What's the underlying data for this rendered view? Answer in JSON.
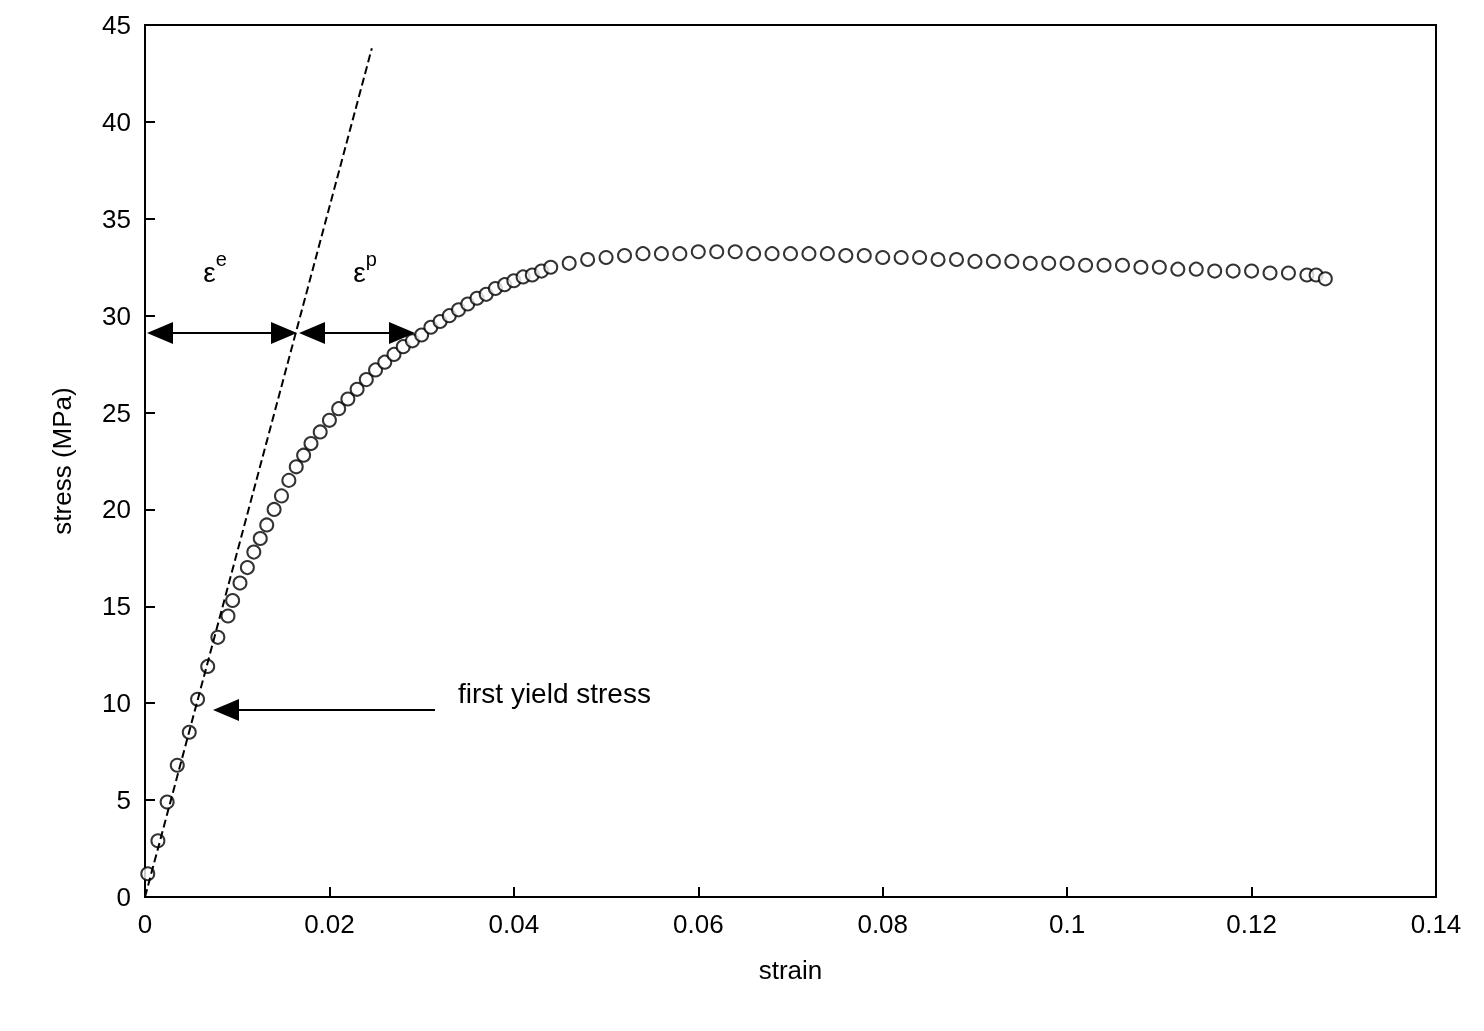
{
  "chart_data": {
    "type": "scatter",
    "xlabel": "strain",
    "ylabel": "stress (MPa)",
    "xlim": [
      0,
      0.14
    ],
    "xticks": [
      0,
      0.02,
      0.04,
      0.06,
      0.08,
      0.1,
      0.12,
      0.14
    ],
    "ylim": [
      0,
      45
    ],
    "yticks": [
      0,
      5,
      10,
      15,
      20,
      25,
      30,
      35,
      40,
      45
    ],
    "grid": false,
    "marker": "circle",
    "series": [
      {
        "color": "#000000",
        "x": [
          0.0003,
          0.0014,
          0.0024,
          0.0035,
          0.0048,
          0.0057,
          0.0068,
          0.0079,
          0.009,
          0.0095,
          0.0103,
          0.0111,
          0.0118,
          0.0125,
          0.0132,
          0.014,
          0.0148,
          0.0156,
          0.0164,
          0.0172,
          0.018,
          0.019,
          0.02,
          0.021,
          0.022,
          0.023,
          0.024,
          0.025,
          0.026,
          0.027,
          0.028,
          0.029,
          0.03,
          0.031,
          0.032,
          0.033,
          0.034,
          0.035,
          0.036,
          0.037,
          0.038,
          0.039,
          0.04,
          0.041,
          0.042,
          0.043,
          0.044,
          0.046,
          0.048,
          0.05,
          0.052,
          0.054,
          0.056,
          0.058,
          0.06,
          0.062,
          0.064,
          0.066,
          0.068,
          0.07,
          0.072,
          0.074,
          0.076,
          0.078,
          0.08,
          0.082,
          0.084,
          0.086,
          0.088,
          0.09,
          0.092,
          0.094,
          0.096,
          0.098,
          0.1,
          0.102,
          0.104,
          0.106,
          0.108,
          0.11,
          0.112,
          0.114,
          0.116,
          0.118,
          0.12,
          0.122,
          0.124,
          0.126,
          0.127,
          0.128
        ],
        "values": [
          1.2,
          2.9,
          4.9,
          6.8,
          8.5,
          10.2,
          11.9,
          13.4,
          14.5,
          15.3,
          16.2,
          17.0,
          17.8,
          18.5,
          19.2,
          20.0,
          20.7,
          21.5,
          22.2,
          22.8,
          23.4,
          24.0,
          24.6,
          25.2,
          25.7,
          26.2,
          26.7,
          27.2,
          27.6,
          28.0,
          28.4,
          28.7,
          29.0,
          29.4,
          29.7,
          30.0,
          30.3,
          30.6,
          30.9,
          31.1,
          31.4,
          31.6,
          31.8,
          32.0,
          32.1,
          32.3,
          32.5,
          32.7,
          32.9,
          33.0,
          33.1,
          33.2,
          33.2,
          33.2,
          33.3,
          33.3,
          33.3,
          33.2,
          33.2,
          33.2,
          33.2,
          33.2,
          33.1,
          33.1,
          33.0,
          33.0,
          33.0,
          32.9,
          32.9,
          32.8,
          32.8,
          32.8,
          32.7,
          32.7,
          32.7,
          32.6,
          32.6,
          32.6,
          32.5,
          32.5,
          32.4,
          32.4,
          32.3,
          32.3,
          32.3,
          32.2,
          32.2,
          32.1,
          32.1,
          31.9
        ]
      },
      {
        "type": "line",
        "color": "#000000",
        "line_style": "dashed",
        "marker": "none",
        "x": [
          0,
          0.0246
        ],
        "values": [
          0,
          43.8
        ]
      }
    ],
    "annotations": [
      "ε$^{e}$",
      "ε$^{p}$",
      "first yield stress"
    ]
  }
}
